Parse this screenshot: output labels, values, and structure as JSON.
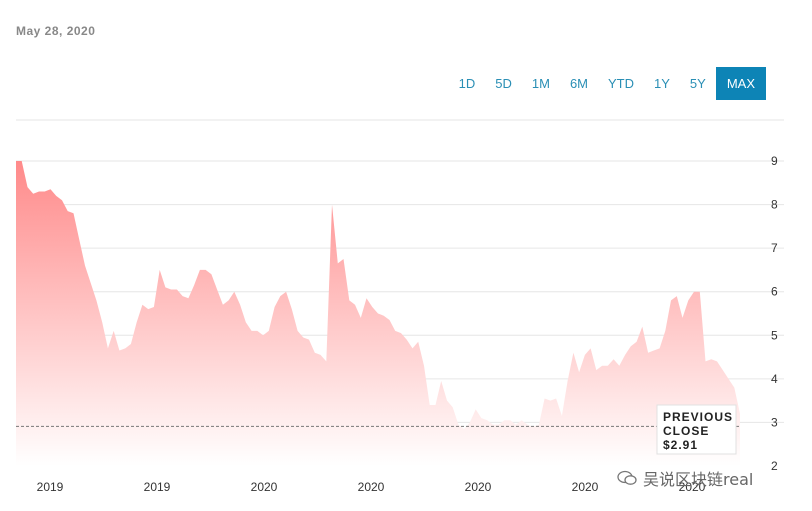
{
  "header": {
    "date": "May 28, 2020"
  },
  "ranges": [
    {
      "label": "1D",
      "active": false
    },
    {
      "label": "5D",
      "active": false
    },
    {
      "label": "1M",
      "active": false
    },
    {
      "label": "6M",
      "active": false
    },
    {
      "label": "YTD",
      "active": false
    },
    {
      "label": "1Y",
      "active": false
    },
    {
      "label": "5Y",
      "active": false
    },
    {
      "label": "MAX",
      "active": true
    }
  ],
  "colors": {
    "accent": "#0d84b6",
    "area_top": "#ff8a8a",
    "area_bottom": "#ffffff"
  },
  "previous_close": {
    "line1": "PREVIOUS",
    "line2": "CLOSE",
    "value": "$2.91",
    "price": 2.91
  },
  "watermark": "吴说区块链real",
  "chart_data": {
    "type": "area",
    "title": "",
    "xlabel": "",
    "ylabel": "",
    "ylim": [
      2,
      9
    ],
    "yticks": [
      2,
      3,
      4,
      5,
      6,
      7,
      8,
      9
    ],
    "xtick_labels": [
      "2019",
      "2019",
      "2020",
      "2020",
      "2020",
      "2020",
      "2020"
    ],
    "grid": true,
    "values": [
      9.0,
      9.0,
      8.4,
      8.25,
      8.3,
      8.3,
      8.35,
      8.2,
      8.1,
      7.85,
      7.8,
      7.2,
      6.6,
      6.2,
      5.8,
      5.3,
      4.7,
      5.1,
      4.65,
      4.7,
      4.8,
      5.3,
      5.7,
      5.6,
      5.65,
      6.5,
      6.1,
      6.05,
      6.05,
      5.9,
      5.85,
      6.15,
      6.5,
      6.5,
      6.4,
      6.05,
      5.7,
      5.8,
      6.0,
      5.7,
      5.3,
      5.1,
      5.1,
      5.0,
      5.1,
      5.65,
      5.9,
      6.0,
      5.6,
      5.1,
      4.95,
      4.9,
      4.6,
      4.55,
      4.4,
      8.0,
      6.65,
      6.75,
      5.8,
      5.7,
      5.4,
      5.85,
      5.65,
      5.5,
      5.45,
      5.35,
      5.1,
      5.05,
      4.9,
      4.7,
      4.85,
      4.3,
      3.4,
      3.4,
      3.95,
      3.5,
      3.35,
      2.95,
      2.85,
      3.0,
      3.3,
      3.1,
      3.05,
      2.95,
      2.95,
      3.05,
      3.05,
      2.95,
      3.05,
      2.95,
      2.9,
      2.95,
      3.55,
      3.5,
      3.55,
      3.15,
      3.95,
      4.6,
      4.15,
      4.55,
      4.7,
      4.2,
      4.3,
      4.3,
      4.45,
      4.3,
      4.55,
      4.75,
      4.85,
      5.2,
      4.6,
      4.65,
      4.7,
      5.1,
      5.8,
      5.9,
      5.4,
      5.8,
      6.0,
      6.0,
      4.4,
      4.45,
      4.4,
      4.2,
      4.0,
      3.8,
      3.2
    ]
  }
}
